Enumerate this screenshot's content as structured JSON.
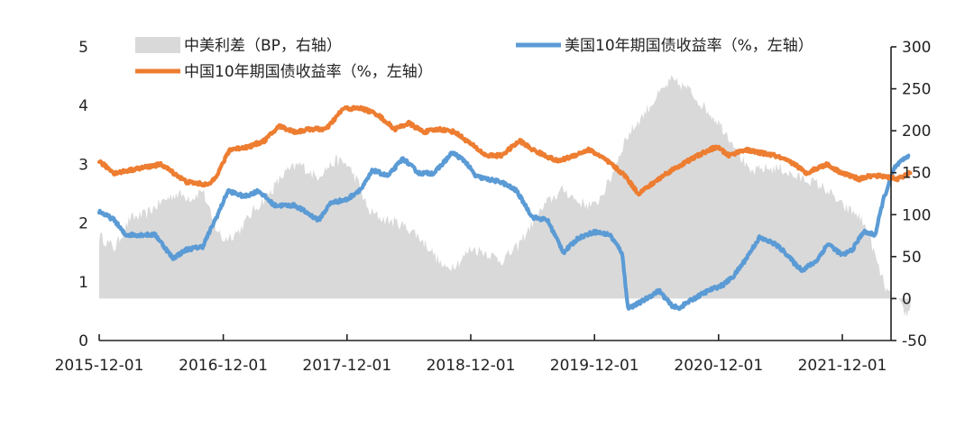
{
  "chart_data": {
    "type": "line",
    "x_ticks": [
      "2015-12-01",
      "2016-12-01",
      "2017-12-01",
      "2018-12-01",
      "2019-12-01",
      "2020-12-01",
      "2021-12-01"
    ],
    "x_range": [
      "2015-12-01",
      "2022-06-20"
    ],
    "y_left": {
      "range": [
        0,
        5
      ],
      "ticks": [
        "0",
        "1",
        "2",
        "3",
        "4",
        "5"
      ]
    },
    "y_right": {
      "range": [
        -50,
        300
      ],
      "ticks": [
        "-50",
        "0",
        "50",
        "100",
        "150",
        "200",
        "250",
        "300"
      ]
    },
    "grid": false,
    "legend_position": "top",
    "series": [
      {
        "name": "中美利差（BP，右轴）",
        "kind": "area",
        "axis": "right",
        "color": "#d9d9d9",
        "points": [
          [
            "2015-12-01",
            75
          ],
          [
            "2016-01-15",
            60
          ],
          [
            "2016-03-01",
            95
          ],
          [
            "2016-04-15",
            100
          ],
          [
            "2016-06-01",
            115
          ],
          [
            "2016-07-15",
            125
          ],
          [
            "2016-09-01",
            120
          ],
          [
            "2016-10-01",
            130
          ],
          [
            "2016-11-01",
            90
          ],
          [
            "2016-12-01",
            70
          ],
          [
            "2017-01-15",
            80
          ],
          [
            "2017-03-01",
            105
          ],
          [
            "2017-04-15",
            125
          ],
          [
            "2017-06-01",
            150
          ],
          [
            "2017-07-15",
            160
          ],
          [
            "2017-09-01",
            145
          ],
          [
            "2017-10-01",
            155
          ],
          [
            "2017-11-01",
            165
          ],
          [
            "2017-12-01",
            160
          ],
          [
            "2018-01-01",
            140
          ],
          [
            "2018-02-01",
            105
          ],
          [
            "2018-03-15",
            95
          ],
          [
            "2018-05-01",
            90
          ],
          [
            "2018-06-15",
            80
          ],
          [
            "2018-08-01",
            60
          ],
          [
            "2018-09-15",
            35
          ],
          [
            "2018-11-01",
            45
          ],
          [
            "2018-12-01",
            60
          ],
          [
            "2019-01-15",
            55
          ],
          [
            "2019-03-01",
            45
          ],
          [
            "2019-04-15",
            60
          ],
          [
            "2019-06-01",
            90
          ],
          [
            "2019-07-15",
            115
          ],
          [
            "2019-09-01",
            130
          ],
          [
            "2019-10-15",
            115
          ],
          [
            "2019-12-01",
            110
          ],
          [
            "2020-01-15",
            140
          ],
          [
            "2020-03-01",
            190
          ],
          [
            "2020-04-15",
            215
          ],
          [
            "2020-06-01",
            240
          ],
          [
            "2020-07-15",
            260
          ],
          [
            "2020-09-01",
            250
          ],
          [
            "2020-10-15",
            230
          ],
          [
            "2020-12-01",
            210
          ],
          [
            "2021-01-15",
            185
          ],
          [
            "2021-03-01",
            150
          ],
          [
            "2021-04-15",
            155
          ],
          [
            "2021-06-01",
            155
          ],
          [
            "2021-07-15",
            145
          ],
          [
            "2021-09-01",
            140
          ],
          [
            "2021-10-15",
            130
          ],
          [
            "2021-12-01",
            110
          ],
          [
            "2022-01-15",
            100
          ],
          [
            "2022-02-15",
            80
          ],
          [
            "2022-03-15",
            40
          ],
          [
            "2022-04-15",
            5
          ],
          [
            "2022-05-15",
            -5
          ],
          [
            "2022-06-10",
            -20
          ],
          [
            "2022-06-20",
            -10
          ]
        ]
      },
      {
        "name": "美国10年期国债收益率（%，左轴）",
        "kind": "line",
        "axis": "left",
        "color": "#5b9bd5",
        "points": [
          [
            "2015-12-01",
            2.2
          ],
          [
            "2016-01-15",
            2.05
          ],
          [
            "2016-02-15",
            1.8
          ],
          [
            "2016-04-01",
            1.8
          ],
          [
            "2016-05-15",
            1.8
          ],
          [
            "2016-07-05",
            1.4
          ],
          [
            "2016-08-15",
            1.55
          ],
          [
            "2016-10-01",
            1.6
          ],
          [
            "2016-11-15",
            2.15
          ],
          [
            "2016-12-15",
            2.55
          ],
          [
            "2017-02-01",
            2.45
          ],
          [
            "2017-03-15",
            2.55
          ],
          [
            "2017-05-01",
            2.3
          ],
          [
            "2017-07-01",
            2.3
          ],
          [
            "2017-09-08",
            2.05
          ],
          [
            "2017-10-15",
            2.35
          ],
          [
            "2017-12-01",
            2.4
          ],
          [
            "2018-01-15",
            2.6
          ],
          [
            "2018-02-15",
            2.9
          ],
          [
            "2018-04-01",
            2.8
          ],
          [
            "2018-05-15",
            3.1
          ],
          [
            "2018-07-01",
            2.85
          ],
          [
            "2018-08-15",
            2.85
          ],
          [
            "2018-10-08",
            3.2
          ],
          [
            "2018-11-15",
            3.05
          ],
          [
            "2018-12-15",
            2.8
          ],
          [
            "2019-01-15",
            2.75
          ],
          [
            "2019-03-01",
            2.7
          ],
          [
            "2019-04-15",
            2.55
          ],
          [
            "2019-06-01",
            2.1
          ],
          [
            "2019-07-15",
            2.05
          ],
          [
            "2019-09-01",
            1.5
          ],
          [
            "2019-10-15",
            1.75
          ],
          [
            "2019-12-01",
            1.85
          ],
          [
            "2020-01-15",
            1.8
          ],
          [
            "2020-02-20",
            1.5
          ],
          [
            "2020-03-09",
            0.55
          ],
          [
            "2020-04-15",
            0.65
          ],
          [
            "2020-06-08",
            0.85
          ],
          [
            "2020-07-15",
            0.6
          ],
          [
            "2020-08-05",
            0.55
          ],
          [
            "2020-09-15",
            0.7
          ],
          [
            "2020-11-01",
            0.85
          ],
          [
            "2020-12-15",
            0.95
          ],
          [
            "2021-01-15",
            1.1
          ],
          [
            "2021-02-15",
            1.35
          ],
          [
            "2021-03-31",
            1.75
          ],
          [
            "2021-05-15",
            1.65
          ],
          [
            "2021-06-15",
            1.5
          ],
          [
            "2021-07-15",
            1.3
          ],
          [
            "2021-08-05",
            1.2
          ],
          [
            "2021-09-15",
            1.35
          ],
          [
            "2021-10-20",
            1.65
          ],
          [
            "2021-12-01",
            1.45
          ],
          [
            "2021-12-31",
            1.55
          ],
          [
            "2022-02-01",
            1.85
          ],
          [
            "2022-03-08",
            1.8
          ],
          [
            "2022-04-01",
            2.4
          ],
          [
            "2022-05-05",
            2.95
          ],
          [
            "2022-06-14",
            3.15
          ]
        ]
      },
      {
        "name": "中国10年期国债收益率（%，左轴）",
        "kind": "line",
        "axis": "left",
        "color": "#ed7d31",
        "points": [
          [
            "2015-12-01",
            3.05
          ],
          [
            "2016-01-15",
            2.85
          ],
          [
            "2016-03-01",
            2.9
          ],
          [
            "2016-04-15",
            2.95
          ],
          [
            "2016-06-01",
            3.0
          ],
          [
            "2016-08-15",
            2.7
          ],
          [
            "2016-10-20",
            2.65
          ],
          [
            "2016-11-15",
            2.85
          ],
          [
            "2016-12-20",
            3.25
          ],
          [
            "2017-02-15",
            3.3
          ],
          [
            "2017-04-01",
            3.4
          ],
          [
            "2017-05-15",
            3.65
          ],
          [
            "2017-07-01",
            3.55
          ],
          [
            "2017-08-15",
            3.6
          ],
          [
            "2017-10-01",
            3.6
          ],
          [
            "2017-11-20",
            3.95
          ],
          [
            "2018-01-15",
            3.95
          ],
          [
            "2018-03-01",
            3.85
          ],
          [
            "2018-04-20",
            3.6
          ],
          [
            "2018-06-01",
            3.7
          ],
          [
            "2018-07-15",
            3.55
          ],
          [
            "2018-09-01",
            3.6
          ],
          [
            "2018-10-15",
            3.55
          ],
          [
            "2018-12-01",
            3.35
          ],
          [
            "2019-01-15",
            3.15
          ],
          [
            "2019-03-01",
            3.15
          ],
          [
            "2019-04-25",
            3.4
          ],
          [
            "2019-06-01",
            3.25
          ],
          [
            "2019-08-15",
            3.05
          ],
          [
            "2019-10-01",
            3.15
          ],
          [
            "2019-11-15",
            3.25
          ],
          [
            "2019-12-15",
            3.15
          ],
          [
            "2020-01-20",
            3.0
          ],
          [
            "2020-03-01",
            2.8
          ],
          [
            "2020-04-08",
            2.5
          ],
          [
            "2020-05-15",
            2.65
          ],
          [
            "2020-07-01",
            2.85
          ],
          [
            "2020-08-15",
            3.0
          ],
          [
            "2020-10-01",
            3.15
          ],
          [
            "2020-11-25",
            3.3
          ],
          [
            "2020-12-31",
            3.15
          ],
          [
            "2021-02-15",
            3.25
          ],
          [
            "2021-03-30",
            3.2
          ],
          [
            "2021-05-15",
            3.15
          ],
          [
            "2021-07-15",
            3.0
          ],
          [
            "2021-08-15",
            2.85
          ],
          [
            "2021-10-15",
            3.0
          ],
          [
            "2021-12-01",
            2.85
          ],
          [
            "2022-01-20",
            2.75
          ],
          [
            "2022-02-20",
            2.8
          ],
          [
            "2022-04-01",
            2.8
          ],
          [
            "2022-05-15",
            2.75
          ],
          [
            "2022-06-20",
            2.85
          ]
        ]
      }
    ]
  }
}
